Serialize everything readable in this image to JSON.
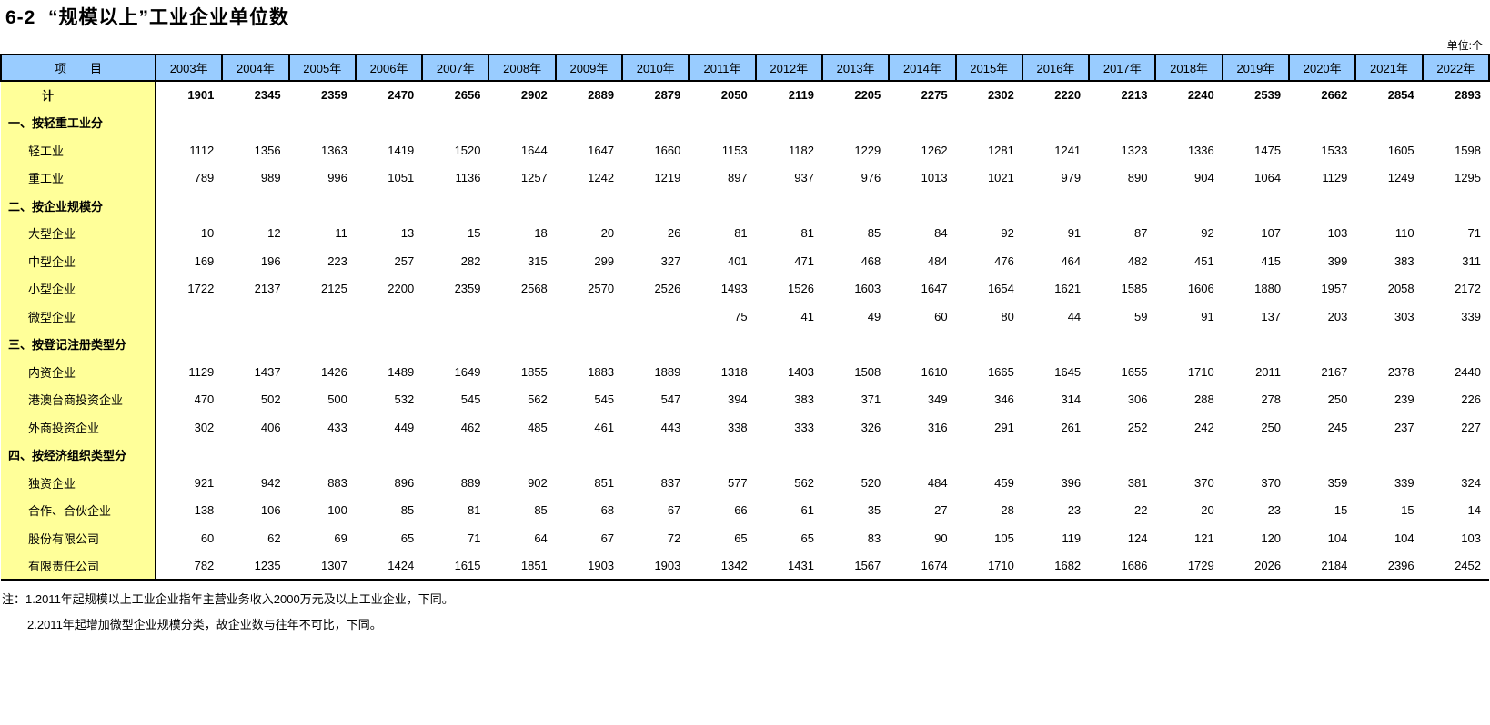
{
  "page": {
    "title": "6-2  “规模以上”工业企业单位数",
    "unit_label": "单位:个"
  },
  "table": {
    "header": {
      "item_label": "项　　目",
      "years": [
        "2003年",
        "2004年",
        "2005年",
        "2006年",
        "2007年",
        "2008年",
        "2009年",
        "2010年",
        "2011年",
        "2012年",
        "2013年",
        "2014年",
        "2015年",
        "2016年",
        "2017年",
        "2018年",
        "2019年",
        "2020年",
        "2021年",
        "2022年"
      ]
    },
    "rows": [
      {
        "label": "计",
        "type": "total",
        "values": [
          1901,
          2345,
          2359,
          2470,
          2656,
          2902,
          2889,
          2879,
          2050,
          2119,
          2205,
          2275,
          2302,
          2220,
          2213,
          2240,
          2539,
          2662,
          2854,
          2893
        ]
      },
      {
        "label": "一、按轻重工业分",
        "type": "section",
        "values": []
      },
      {
        "label": "轻工业",
        "type": "data",
        "values": [
          1112,
          1356,
          1363,
          1419,
          1520,
          1644,
          1647,
          1660,
          1153,
          1182,
          1229,
          1262,
          1281,
          1241,
          1323,
          1336,
          1475,
          1533,
          1605,
          1598
        ]
      },
      {
        "label": "重工业",
        "type": "data",
        "values": [
          789,
          989,
          996,
          1051,
          1136,
          1257,
          1242,
          1219,
          897,
          937,
          976,
          1013,
          1021,
          979,
          890,
          904,
          1064,
          1129,
          1249,
          1295
        ]
      },
      {
        "label": "二、按企业规模分",
        "type": "section",
        "values": []
      },
      {
        "label": "大型企业",
        "type": "data",
        "values": [
          10,
          12,
          11,
          13,
          15,
          18,
          20,
          26,
          81,
          81,
          85,
          84,
          92,
          91,
          87,
          92,
          107,
          103,
          110,
          71
        ]
      },
      {
        "label": "中型企业",
        "type": "data",
        "values": [
          169,
          196,
          223,
          257,
          282,
          315,
          299,
          327,
          401,
          471,
          468,
          484,
          476,
          464,
          482,
          451,
          415,
          399,
          383,
          311
        ]
      },
      {
        "label": "小型企业",
        "type": "data",
        "values": [
          1722,
          2137,
          2125,
          2200,
          2359,
          2568,
          2570,
          2526,
          1493,
          1526,
          1603,
          1647,
          1654,
          1621,
          1585,
          1606,
          1880,
          1957,
          2058,
          2172
        ]
      },
      {
        "label": "微型企业",
        "type": "data",
        "values": [
          "",
          "",
          "",
          "",
          "",
          "",
          "",
          "",
          75,
          41,
          49,
          60,
          80,
          44,
          59,
          91,
          137,
          203,
          303,
          339
        ]
      },
      {
        "label": "三、按登记注册类型分",
        "type": "section",
        "values": []
      },
      {
        "label": "内资企业",
        "type": "data",
        "values": [
          1129,
          1437,
          1426,
          1489,
          1649,
          1855,
          1883,
          1889,
          1318,
          1403,
          1508,
          1610,
          1665,
          1645,
          1655,
          1710,
          2011,
          2167,
          2378,
          2440
        ]
      },
      {
        "label": "港澳台商投资企业",
        "type": "data",
        "values": [
          470,
          502,
          500,
          532,
          545,
          562,
          545,
          547,
          394,
          383,
          371,
          349,
          346,
          314,
          306,
          288,
          278,
          250,
          239,
          226
        ]
      },
      {
        "label": "外商投资企业",
        "type": "data",
        "values": [
          302,
          406,
          433,
          449,
          462,
          485,
          461,
          443,
          338,
          333,
          326,
          316,
          291,
          261,
          252,
          242,
          250,
          245,
          237,
          227
        ]
      },
      {
        "label": "四、按经济组织类型分",
        "type": "section",
        "values": []
      },
      {
        "label": "独资企业",
        "type": "data",
        "values": [
          921,
          942,
          883,
          896,
          889,
          902,
          851,
          837,
          577,
          562,
          520,
          484,
          459,
          396,
          381,
          370,
          370,
          359,
          339,
          324
        ]
      },
      {
        "label": "合作、合伙企业",
        "type": "data",
        "values": [
          138,
          106,
          100,
          85,
          81,
          85,
          68,
          67,
          66,
          61,
          35,
          27,
          28,
          23,
          22,
          20,
          23,
          15,
          15,
          14
        ]
      },
      {
        "label": "股份有限公司",
        "type": "data",
        "values": [
          60,
          62,
          69,
          65,
          71,
          64,
          67,
          72,
          65,
          65,
          83,
          90,
          105,
          119,
          124,
          121,
          120,
          104,
          104,
          103
        ]
      },
      {
        "label": "有限责任公司",
        "type": "data",
        "values": [
          782,
          1235,
          1307,
          1424,
          1615,
          1851,
          1903,
          1903,
          1342,
          1431,
          1567,
          1674,
          1710,
          1682,
          1686,
          1729,
          2026,
          2184,
          2396,
          2452
        ]
      }
    ]
  },
  "notes": [
    "注：1.2011年起规模以上工业企业指年主营业务收入2000万元及以上工业企业，下同。",
    "2.2011年起增加微型企业规模分类，故企业数与往年不可比，下同。"
  ]
}
